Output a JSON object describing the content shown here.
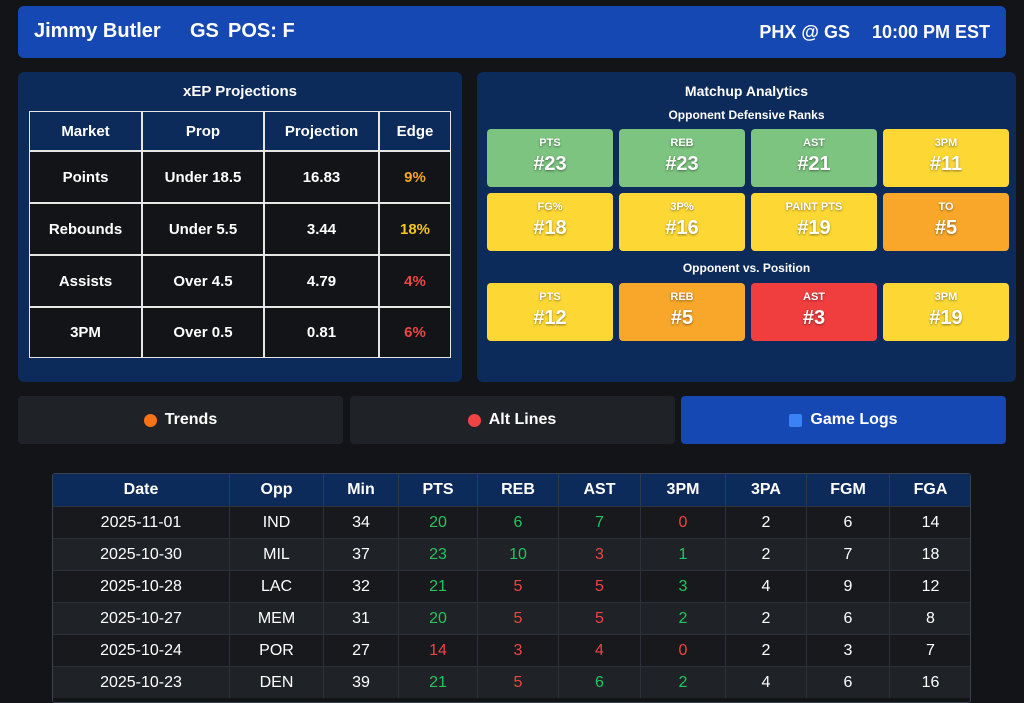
{
  "header": {
    "player": "Jimmy Butler",
    "team": "GS",
    "position": "POS: F",
    "matchup": "PHX @ GS",
    "time": "10:00 PM EST"
  },
  "projections": {
    "title": "xEP Projections",
    "columns": [
      "Market",
      "Prop",
      "Projection",
      "Edge"
    ],
    "rows": [
      [
        "Points",
        "Under 18.5",
        16.83,
        "9%"
      ],
      [
        "Rebounds",
        "Under 5.5",
        3.44,
        "18%"
      ],
      [
        "Assists",
        "Over 4.5",
        4.79,
        "4%"
      ],
      [
        "3PM",
        "Over 0.5",
        0.81,
        "6%"
      ]
    ],
    "edge_colors": [
      "#f5a524",
      "#f5c518",
      "#ef4444",
      "#ef4444"
    ]
  },
  "matchup": {
    "title": "Matchup Analytics",
    "sections": [
      {
        "title": "Opponent Defensive Ranks",
        "tiles": [
          {
            "label": "PTS",
            "rank": "#23",
            "color": "#7cc47f"
          },
          {
            "label": "REB",
            "rank": "#23",
            "color": "#7cc47f"
          },
          {
            "label": "AST",
            "rank": "#21",
            "color": "#7cc47f"
          },
          {
            "label": "3PM",
            "rank": "#11",
            "color": "#fdd835"
          },
          {
            "label": "FG%",
            "rank": "#18",
            "color": "#fdd835"
          },
          {
            "label": "3P%",
            "rank": "#16",
            "color": "#fdd835"
          },
          {
            "label": "PAINT PTS",
            "rank": "#19",
            "color": "#fdd835"
          },
          {
            "label": "TO",
            "rank": "#5",
            "color": "#f8a72a"
          }
        ]
      },
      {
        "title": "Opponent vs. Position",
        "tiles": [
          {
            "label": "PTS",
            "rank": "#12",
            "color": "#fdd835"
          },
          {
            "label": "REB",
            "rank": "#5",
            "color": "#f8a72a"
          },
          {
            "label": "AST",
            "rank": "#3",
            "color": "#f03e3e"
          },
          {
            "label": "3PM",
            "rank": "#19",
            "color": "#fdd835"
          }
        ]
      }
    ]
  },
  "tabs": [
    {
      "label": "Trends",
      "active": false
    },
    {
      "label": "Alt Lines",
      "active": false
    },
    {
      "label": "Game Logs",
      "active": true
    }
  ],
  "game_logs": {
    "columns": [
      "Date",
      "Opp",
      "Min",
      "PTS",
      "REB",
      "AST",
      "3PM",
      "3PA",
      "FGM",
      "FGA"
    ],
    "rows": [
      [
        "2025-11-01",
        "IND",
        34,
        20,
        6,
        7,
        0,
        2,
        6,
        14
      ],
      [
        "2025-10-30",
        "MIL",
        37,
        23,
        10,
        3,
        1,
        2,
        7,
        18
      ],
      [
        "2025-10-28",
        "LAC",
        32,
        21,
        5,
        5,
        3,
        4,
        9,
        12
      ],
      [
        "2025-10-27",
        "MEM",
        31,
        20,
        5,
        5,
        2,
        2,
        6,
        8
      ],
      [
        "2025-10-24",
        "POR",
        27,
        14,
        3,
        4,
        0,
        2,
        3,
        7
      ],
      [
        "2025-10-23",
        "DEN",
        39,
        21,
        5,
        6,
        2,
        4,
        6,
        16
      ]
    ],
    "colors": [
      [
        "#ffffff",
        "#ffffff",
        "#ffffff",
        "#22c55e",
        "#22c55e",
        "#22c55e",
        "#ef4444",
        "#ffffff",
        "#ffffff",
        "#ffffff"
      ],
      [
        "#ffffff",
        "#ffffff",
        "#ffffff",
        "#22c55e",
        "#22c55e",
        "#ef4444",
        "#22c55e",
        "#ffffff",
        "#ffffff",
        "#ffffff"
      ],
      [
        "#ffffff",
        "#ffffff",
        "#ffffff",
        "#22c55e",
        "#ef4444",
        "#ef4444",
        "#22c55e",
        "#ffffff",
        "#ffffff",
        "#ffffff"
      ],
      [
        "#ffffff",
        "#ffffff",
        "#ffffff",
        "#22c55e",
        "#ef4444",
        "#ef4444",
        "#22c55e",
        "#ffffff",
        "#ffffff",
        "#ffffff"
      ],
      [
        "#ffffff",
        "#ffffff",
        "#ffffff",
        "#ef4444",
        "#ef4444",
        "#ef4444",
        "#ef4444",
        "#ffffff",
        "#ffffff",
        "#ffffff"
      ],
      [
        "#ffffff",
        "#ffffff",
        "#ffffff",
        "#22c55e",
        "#ef4444",
        "#22c55e",
        "#22c55e",
        "#ffffff",
        "#ffffff",
        "#ffffff"
      ]
    ]
  }
}
